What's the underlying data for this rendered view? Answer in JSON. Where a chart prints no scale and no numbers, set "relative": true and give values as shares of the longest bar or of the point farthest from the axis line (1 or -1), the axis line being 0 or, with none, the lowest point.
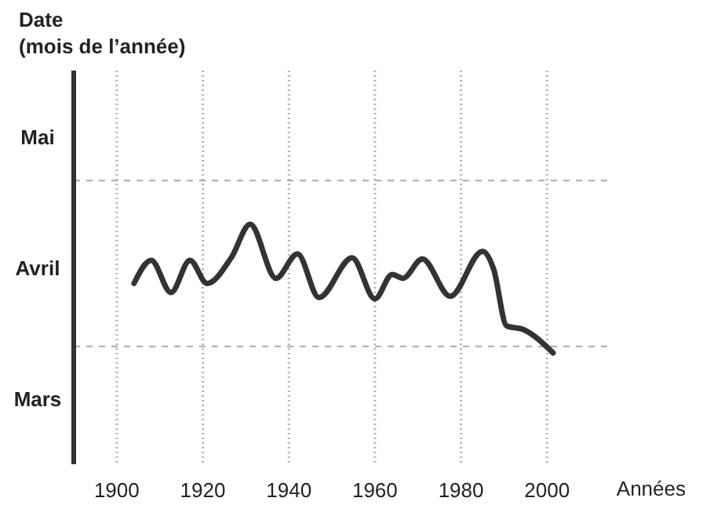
{
  "chart_data": {
    "type": "line",
    "title": "Date (mois de l’année)",
    "xlabel": "Années",
    "relative": true,
    "x": [
      1904,
      1908,
      1912.6,
      1917,
      1921,
      1926.6,
      1931,
      1937,
      1942,
      1947,
      1954.7,
      1960,
      1964,
      1966.5,
      1971,
      1977.5,
      1985,
      1987.6,
      1990.6,
      1994.6,
      2001.4
    ],
    "series": [
      {
        "color": "#333333",
        "values": [
          0.54,
          0.72,
          0.47,
          0.72,
          0.54,
          0.74,
          1,
          0.58,
          0.77,
          0.43,
          0.74,
          0.42,
          0.61,
          0.58,
          0.73,
          0.44,
          0.79,
          0.65,
          0.21,
          0.18,
          0
        ]
      }
    ],
    "xlim": [
      1890,
      2014
    ],
    "xticks": [
      1900,
      1920,
      1940,
      1960,
      1980,
      2000
    ],
    "annotations": [
      "Mars",
      "Avril",
      "Mai"
    ],
    "grid": "x",
    "marker": "none",
    "line_style": "solid",
    "ref_lines": [
      {
        "axis": "y",
        "value": 1.34,
        "line_style": "dashed",
        "color": "#aaaaaa"
      },
      {
        "axis": "y",
        "value": 0.05,
        "line_style": "dashed",
        "color": "#aaaaaa"
      }
    ]
  }
}
